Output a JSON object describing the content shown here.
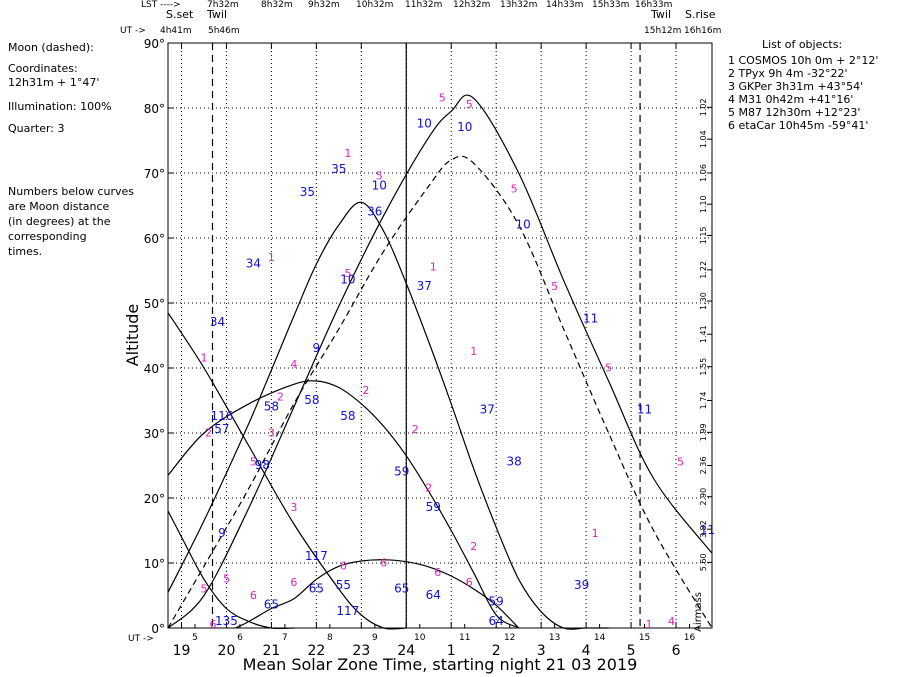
{
  "header": {
    "lst_label": "LST ---->",
    "lst_values": [
      "7h32m",
      "8h32m",
      "9h32m",
      "10h32m",
      "11h32m",
      "12h32m",
      "13h32m",
      "14h33m",
      "15h33m",
      "16h33m"
    ],
    "sset_label": "S.set",
    "twil_left_label": "Twil",
    "ut_arrow_label": "UT ->",
    "sset_ut": "4h41m",
    "twil_left_ut": "5h46m",
    "twil_right_label": "Twil",
    "twil_right_ut": "15h12m",
    "srise_label": "S.rise",
    "srise_ut": "16h16m"
  },
  "left_panel": {
    "moon_label": "Moon (dashed):",
    "coords_label": "Coordinates:",
    "coords_value": "12h31m  + 1°47'",
    "illumination": "Illumination: 100%",
    "quarter": "Quarter: 3",
    "note_lines": [
      "Numbers below curves",
      "are Moon distance",
      "(in degrees) at the",
      "corresponding",
      "times."
    ]
  },
  "objects": {
    "title": "List of objects:",
    "items": [
      {
        "num": "1",
        "name": "COSMOS",
        "ra": "10h 0m",
        "dec": "+ 2°12'"
      },
      {
        "num": "2",
        "name": "TPyx",
        "ra": "9h 4m",
        "dec": "-32°22'"
      },
      {
        "num": "3",
        "name": "GKPer",
        "ra": "3h31m",
        "dec": "+43°54'"
      },
      {
        "num": "4",
        "name": "M31",
        "ra": "0h42m",
        "dec": "+41°16'"
      },
      {
        "num": "5",
        "name": "M87",
        "ra": "12h30m",
        "dec": "+12°23'"
      },
      {
        "num": "6",
        "name": "etaCar",
        "ra": "10h45m",
        "dec": "-59°41'"
      }
    ]
  },
  "colors": {
    "curve_labels": "#e020c8",
    "moon_distances": "#1010d8",
    "lines": "#000000"
  },
  "chart_data": {
    "type": "line",
    "title": "",
    "xlabel": "Mean Solar Zone Time, starting night 21 03 2019",
    "ylabel": "Altitude",
    "right_axis_label": "Airmass",
    "ut_axis_label": "UT ->",
    "xlim": [
      18.7,
      30.8
    ],
    "ylim": [
      0,
      90
    ],
    "x_major_ticks": [
      19,
      20,
      21,
      22,
      23,
      24,
      25,
      26,
      27,
      28,
      29,
      30
    ],
    "x_tick_labels": [
      "19",
      "20",
      "21",
      "22",
      "23",
      "24",
      "1",
      "2",
      "3",
      "4",
      "5",
      "6"
    ],
    "ut_ticks": [
      19.3,
      20.3,
      21.3,
      22.3,
      23.3,
      24.3,
      25.3,
      26.3,
      27.3,
      28.3,
      29.3,
      30.3
    ],
    "ut_tick_labels": [
      "5",
      "6",
      "7",
      "8",
      "9",
      "10",
      "11",
      "12",
      "13",
      "14",
      "15",
      "16"
    ],
    "y_ticks": [
      0,
      10,
      20,
      30,
      40,
      50,
      60,
      70,
      80,
      90
    ],
    "y_tick_labels": [
      "0°",
      "10°",
      "20°",
      "30°",
      "40°",
      "50°",
      "60°",
      "70°",
      "80°",
      "90°"
    ],
    "airmass_ticks": [
      {
        "alt": 10.1,
        "label": "5.60"
      },
      {
        "alt": 15.2,
        "label": "3.82"
      },
      {
        "alt": 20.2,
        "label": "2.90"
      },
      {
        "alt": 25.0,
        "label": "2.36"
      },
      {
        "alt": 30.1,
        "label": "1.99"
      },
      {
        "alt": 35.0,
        "label": "1.74"
      },
      {
        "alt": 40.2,
        "label": "1.55"
      },
      {
        "alt": 45.2,
        "label": "1.41"
      },
      {
        "alt": 50.3,
        "label": "1.30"
      },
      {
        "alt": 55.1,
        "label": "1.22"
      },
      {
        "alt": 60.4,
        "label": "1.15"
      },
      {
        "alt": 65.2,
        "label": "1.10"
      },
      {
        "alt": 70.0,
        "label": "1.06"
      },
      {
        "alt": 75.2,
        "label": "1.04"
      },
      {
        "alt": 80.1,
        "label": "1.02"
      }
    ],
    "vertical_markers": [
      {
        "x": 19.69,
        "style": "dashed"
      },
      {
        "x": 24.0,
        "style": "solid"
      },
      {
        "x": 29.2,
        "style": "dashed"
      }
    ],
    "series": [
      {
        "name": "1",
        "x": [
          18.7,
          19.5,
          20.5,
          21.5,
          22.0,
          22.5,
          23.0,
          23.5,
          24.0,
          24.5,
          25.0,
          25.5,
          26.0,
          26.5,
          27.0,
          27.5,
          28.0,
          28.5
        ],
        "y": [
          5.5,
          16.5,
          31.5,
          48,
          56,
          62,
          65.5,
          61,
          53,
          44,
          34.5,
          24.5,
          15.5,
          7.5,
          2.5,
          0,
          0,
          0
        ]
      },
      {
        "name": "2",
        "x": [
          18.7,
          19.5,
          20.5,
          21.5,
          22.0,
          22.5,
          23.0,
          23.5,
          24.0,
          24.5,
          25.0,
          25.5,
          26.0,
          26.5
        ],
        "y": [
          23.5,
          30,
          34.5,
          37.5,
          38,
          37,
          34.5,
          31,
          26.5,
          21,
          15,
          8.5,
          2,
          0
        ]
      },
      {
        "name": "3",
        "x": [
          18.7,
          19.5,
          20.5,
          21.5,
          22.5,
          23.0,
          23.5,
          24.0
        ],
        "y": [
          48.5,
          40,
          28,
          16,
          6,
          2,
          0,
          0
        ]
      },
      {
        "name": "5",
        "x": [
          18.7,
          19.5,
          20.5,
          21.5,
          22.5,
          23.5,
          24.5,
          25.0,
          25.5,
          26.5,
          27.5,
          28.5,
          29.5,
          30.8
        ],
        "y": [
          0,
          5,
          18.5,
          34,
          49.5,
          63.5,
          75.5,
          79.5,
          81.5,
          70,
          53.5,
          38,
          23,
          11.5
        ]
      },
      {
        "name": "6",
        "x": [
          20.2,
          20.5,
          21.0,
          21.5,
          22.0,
          22.5,
          23.0,
          23.5,
          24.0,
          24.5,
          25.0,
          25.5,
          26.0,
          26.5
        ],
        "y": [
          0,
          1,
          3,
          4.5,
          7.5,
          9.5,
          10.3,
          10.5,
          10.2,
          9.4,
          8,
          6,
          3.5,
          0
        ]
      },
      {
        "name": "4",
        "x": [
          18.7,
          19.0,
          19.5,
          20.0,
          20.5,
          21.0,
          21.5
        ],
        "y": [
          18,
          14,
          7.5,
          3,
          1,
          0,
          0
        ]
      },
      {
        "name": "Moon",
        "style": "dashed",
        "x": [
          18.7,
          19.5,
          20.5,
          21.5,
          22.5,
          23.5,
          24.5,
          25.0,
          25.5,
          26.5,
          27.5,
          28.5,
          29.5,
          30.8
        ],
        "y": [
          0,
          9.5,
          21.5,
          34.5,
          46,
          58,
          68,
          72,
          71.5,
          62,
          46,
          30,
          15,
          0
        ]
      }
    ],
    "object_labels": [
      {
        "label": "1",
        "x": 21.0,
        "y": 56.5
      },
      {
        "label": "1",
        "x": 22.7,
        "y": 72.5
      },
      {
        "label": "1",
        "x": 24.6,
        "y": 55
      },
      {
        "label": "1",
        "x": 25.5,
        "y": 42
      },
      {
        "label": "1",
        "x": 28.2,
        "y": 14
      },
      {
        "label": "1",
        "x": 29.4,
        "y": 0
      },
      {
        "label": "2",
        "x": 19.6,
        "y": 29.5
      },
      {
        "label": "2",
        "x": 21.2,
        "y": 35
      },
      {
        "label": "2",
        "x": 23.1,
        "y": 36
      },
      {
        "label": "2",
        "x": 24.2,
        "y": 30
      },
      {
        "label": "2",
        "x": 24.5,
        "y": 21
      },
      {
        "label": "2",
        "x": 25.5,
        "y": 12
      },
      {
        "label": "3",
        "x": 21.0,
        "y": 29.5
      },
      {
        "label": "3",
        "x": 21.5,
        "y": 18
      },
      {
        "label": "4",
        "x": 29.9,
        "y": 0.5
      },
      {
        "label": "5",
        "x": 20.0,
        "y": 7
      },
      {
        "label": "5",
        "x": 20.6,
        "y": 25
      },
      {
        "label": "5",
        "x": 22.7,
        "y": 54
      },
      {
        "label": "5",
        "x": 23.4,
        "y": 69
      },
      {
        "label": "5",
        "x": 24.8,
        "y": 81
      },
      {
        "label": "5",
        "x": 25.4,
        "y": 80
      },
      {
        "label": "5",
        "x": 26.4,
        "y": 67
      },
      {
        "label": "5",
        "x": 27.3,
        "y": 52
      },
      {
        "label": "5",
        "x": 28.5,
        "y": 39.5
      },
      {
        "label": "5",
        "x": 30.1,
        "y": 25
      },
      {
        "label": "6",
        "x": 19.7,
        "y": 0
      },
      {
        "label": "6",
        "x": 20.6,
        "y": 4.5
      },
      {
        "label": "6",
        "x": 21.5,
        "y": 6.5
      },
      {
        "label": "6",
        "x": 22.6,
        "y": 9
      },
      {
        "label": "6",
        "x": 23.5,
        "y": 9.5
      },
      {
        "label": "6",
        "x": 24.7,
        "y": 8
      },
      {
        "label": "6",
        "x": 25.4,
        "y": 6.5
      },
      {
        "label": "4",
        "x": 21.5,
        "y": 40
      },
      {
        "label": "1",
        "x": 19.5,
        "y": 41
      },
      {
        "label": "5",
        "x": 19.5,
        "y": 5.5
      }
    ],
    "moon_distances": [
      {
        "label": "34",
        "x": 19.8,
        "y": 46.5
      },
      {
        "label": "116",
        "x": 19.9,
        "y": 32
      },
      {
        "label": "57",
        "x": 19.9,
        "y": 30
      },
      {
        "label": "9",
        "x": 19.9,
        "y": 14
      },
      {
        "label": "135",
        "x": 20.0,
        "y": 0.5
      },
      {
        "label": "34",
        "x": 20.6,
        "y": 55.5
      },
      {
        "label": "58",
        "x": 21.0,
        "y": 33.5
      },
      {
        "label": "65",
        "x": 21.0,
        "y": 3
      },
      {
        "label": "98",
        "x": 20.8,
        "y": 24.5
      },
      {
        "label": "35",
        "x": 21.8,
        "y": 66.5
      },
      {
        "label": "58",
        "x": 21.9,
        "y": 34.5
      },
      {
        "label": "117",
        "x": 22.0,
        "y": 10.5
      },
      {
        "label": "65",
        "x": 22.0,
        "y": 5.5
      },
      {
        "label": "9",
        "x": 22.0,
        "y": 42.5
      },
      {
        "label": "35",
        "x": 22.5,
        "y": 70
      },
      {
        "label": "10",
        "x": 22.7,
        "y": 53
      },
      {
        "label": "58",
        "x": 22.7,
        "y": 32
      },
      {
        "label": "55",
        "x": 22.6,
        "y": 6
      },
      {
        "label": "117",
        "x": 22.7,
        "y": 2
      },
      {
        "label": "36",
        "x": 23.3,
        "y": 63.5
      },
      {
        "label": "10",
        "x": 23.4,
        "y": 67.5
      },
      {
        "label": "59",
        "x": 23.9,
        "y": 23.5
      },
      {
        "label": "59",
        "x": 24.6,
        "y": 18
      },
      {
        "label": "65",
        "x": 23.9,
        "y": 5.5
      },
      {
        "label": "64",
        "x": 24.6,
        "y": 4.5
      },
      {
        "label": "37",
        "x": 24.4,
        "y": 52
      },
      {
        "label": "10",
        "x": 24.4,
        "y": 77
      },
      {
        "label": "10",
        "x": 25.3,
        "y": 76.5
      },
      {
        "label": "37",
        "x": 25.8,
        "y": 33
      },
      {
        "label": "38",
        "x": 26.4,
        "y": 25
      },
      {
        "label": "59",
        "x": 26.0,
        "y": 3.5
      },
      {
        "label": "64",
        "x": 26.0,
        "y": 0.5
      },
      {
        "label": "10",
        "x": 26.6,
        "y": 61.5
      },
      {
        "label": "11",
        "x": 28.1,
        "y": 47
      },
      {
        "label": "39",
        "x": 27.9,
        "y": 6
      },
      {
        "label": "11",
        "x": 29.3,
        "y": 33
      },
      {
        "label": "11",
        "x": 30.7,
        "y": 14.5
      }
    ]
  }
}
